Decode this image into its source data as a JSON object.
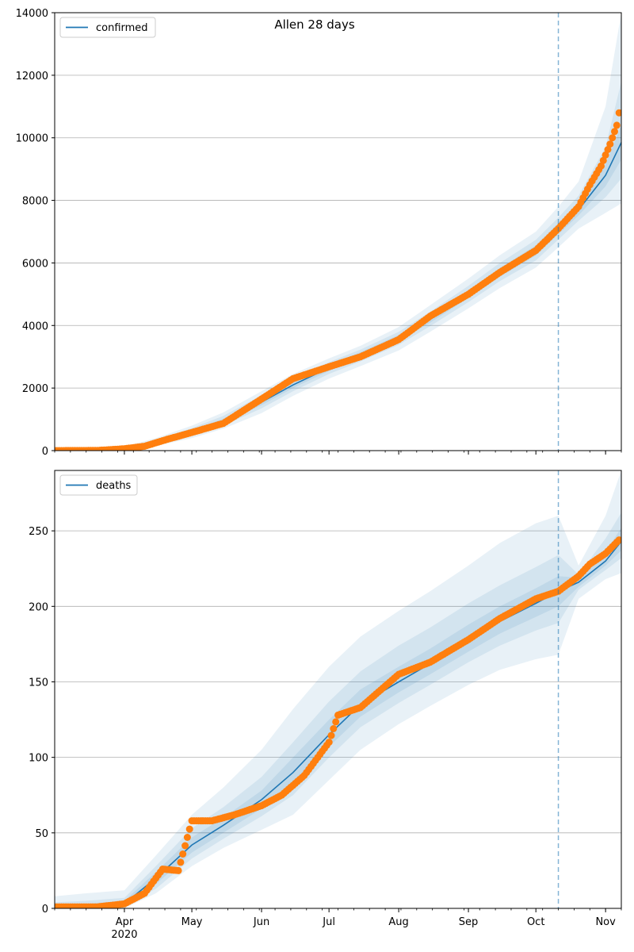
{
  "figure": {
    "title": "Allen 28 days"
  },
  "colors": {
    "model_line": "#1f77b4",
    "observed": "#ff7f0e",
    "band": "#1f77b4",
    "grid": "#b0b0b0",
    "cutoff": "#1f77b4"
  },
  "chart_data": [
    {
      "type": "line",
      "legend": {
        "label": "confirmed",
        "placement": "top-left"
      },
      "x_range": [
        "2020-03-01",
        "2020-11-08"
      ],
      "ylim": [
        0,
        14000
      ],
      "yticks": [
        0,
        2000,
        4000,
        6000,
        8000,
        10000,
        12000,
        14000
      ],
      "ytick_labels": [
        "0",
        "2000",
        "4000",
        "6000",
        "8000",
        "10000",
        "12000",
        "14000"
      ],
      "grid": "y",
      "cutoff_date": "2020-10-11",
      "model": {
        "dates": [
          "2020-03-01",
          "2020-03-15",
          "2020-04-01",
          "2020-04-15",
          "2020-05-01",
          "2020-05-15",
          "2020-06-01",
          "2020-06-15",
          "2020-07-01",
          "2020-07-15",
          "2020-08-01",
          "2020-08-15",
          "2020-09-01",
          "2020-09-15",
          "2020-10-01",
          "2020-10-11",
          "2020-10-20",
          "2020-11-01",
          "2020-11-08"
        ],
        "values": [
          0,
          10,
          60,
          270,
          600,
          950,
          1550,
          2100,
          2650,
          3050,
          3600,
          4200,
          5000,
          5700,
          6400,
          7100,
          7700,
          8800,
          9850
        ]
      },
      "uncertainty_bands": [
        {
          "level": "outer",
          "lower": [
            0,
            0,
            10,
            150,
            400,
            700,
            1200,
            1750,
            2300,
            2700,
            3200,
            3800,
            4550,
            5200,
            5850,
            6500,
            7100,
            7600,
            7900
          ],
          "upper": [
            0,
            30,
            130,
            400,
            800,
            1220,
            1900,
            2450,
            2950,
            3350,
            3950,
            4650,
            5500,
            6250,
            7000,
            7800,
            8600,
            11000,
            14000
          ]
        },
        {
          "level": "middle",
          "lower": [
            0,
            5,
            30,
            200,
            480,
            800,
            1350,
            1900,
            2450,
            2850,
            3380,
            3980,
            4750,
            5420,
            6080,
            6750,
            7350,
            8100,
            8700
          ],
          "upper": [
            0,
            20,
            100,
            340,
            720,
            1110,
            1770,
            2320,
            2830,
            3230,
            3800,
            4440,
            5270,
            6000,
            6740,
            7450,
            8150,
            9700,
            11800
          ]
        },
        {
          "level": "inner",
          "lower": [
            0,
            8,
            45,
            235,
            540,
            880,
            1450,
            2000,
            2550,
            2950,
            3500,
            4090,
            4880,
            5560,
            6240,
            6920,
            7520,
            8450,
            9300
          ],
          "upper": [
            0,
            14,
            75,
            305,
            660,
            1020,
            1650,
            2200,
            2750,
            3150,
            3700,
            4310,
            5120,
            5840,
            6560,
            7280,
            7880,
            9150,
            10400
          ]
        }
      ],
      "observed": {
        "dates": [
          "2020-03-01",
          "2020-03-20",
          "2020-04-01",
          "2020-04-10",
          "2020-04-20",
          "2020-05-01",
          "2020-05-15",
          "2020-06-01",
          "2020-06-15",
          "2020-07-01",
          "2020-07-15",
          "2020-08-01",
          "2020-08-15",
          "2020-09-01",
          "2020-09-15",
          "2020-10-01",
          "2020-10-11",
          "2020-10-20",
          "2020-10-25",
          "2020-10-30",
          "2020-11-03",
          "2020-11-06",
          "2020-11-07"
        ],
        "values": [
          0,
          5,
          60,
          140,
          360,
          580,
          870,
          1650,
          2300,
          2680,
          3000,
          3550,
          4300,
          5000,
          5700,
          6400,
          7100,
          7800,
          8500,
          9100,
          9800,
          10400,
          10800
        ]
      }
    },
    {
      "type": "line",
      "legend": {
        "label": "deaths",
        "placement": "top-left"
      },
      "x_range": [
        "2020-03-01",
        "2020-11-08"
      ],
      "ylim": [
        0,
        290
      ],
      "yticks": [
        0,
        50,
        100,
        150,
        200,
        250
      ],
      "ytick_labels": [
        "0",
        "50",
        "100",
        "150",
        "200",
        "250"
      ],
      "grid": "y",
      "cutoff_date": "2020-10-11",
      "xticks_major": [
        "2020-04-01",
        "2020-05-01",
        "2020-06-01",
        "2020-07-01",
        "2020-08-01",
        "2020-09-01",
        "2020-10-01",
        "2020-11-01"
      ],
      "xtick_labels": [
        "Apr\n2020",
        "May",
        "Jun",
        "Jul",
        "Aug",
        "Sep",
        "Oct",
        "Nov"
      ],
      "model": {
        "dates": [
          "2020-03-01",
          "2020-03-15",
          "2020-04-01",
          "2020-04-15",
          "2020-05-01",
          "2020-05-15",
          "2020-06-01",
          "2020-06-15",
          "2020-07-01",
          "2020-07-15",
          "2020-08-01",
          "2020-08-15",
          "2020-09-01",
          "2020-09-15",
          "2020-10-01",
          "2020-10-11",
          "2020-10-20",
          "2020-11-01",
          "2020-11-08"
        ],
        "values": [
          0,
          1,
          3,
          20,
          42,
          55,
          72,
          90,
          115,
          135,
          150,
          162,
          178,
          190,
          202,
          210,
          216,
          230,
          243
        ]
      },
      "uncertainty_bands": [
        {
          "level": "outer",
          "lower": [
            0,
            0,
            0,
            10,
            28,
            40,
            52,
            62,
            85,
            105,
            122,
            134,
            148,
            158,
            165,
            168,
            205,
            218,
            222
          ],
          "upper": [
            8,
            10,
            12,
            35,
            62,
            80,
            105,
            132,
            160,
            180,
            197,
            210,
            227,
            242,
            255,
            260,
            227,
            260,
            290
          ]
        },
        {
          "level": "middle",
          "lower": [
            0,
            0,
            1,
            13,
            33,
            46,
            61,
            75,
            100,
            120,
            136,
            148,
            163,
            174,
            184,
            189,
            211,
            224,
            232
          ],
          "upper": [
            4,
            5,
            7,
            28,
            53,
            67,
            87,
            110,
            137,
            157,
            174,
            186,
            202,
            214,
            226,
            234,
            221,
            245,
            262
          ]
        },
        {
          "level": "inner",
          "lower": [
            0,
            0,
            2,
            16,
            37,
            50,
            66,
            82,
            107,
            127,
            143,
            155,
            170,
            182,
            193,
            200,
            213,
            227,
            237
          ],
          "upper": [
            2,
            3,
            5,
            24,
            47,
            60,
            78,
            100,
            125,
            145,
            160,
            172,
            188,
            200,
            212,
            220,
            219,
            236,
            252
          ]
        }
      ],
      "observed": {
        "dates": [
          "2020-03-01",
          "2020-03-20",
          "2020-04-01",
          "2020-04-10",
          "2020-04-18",
          "2020-04-25",
          "2020-05-01",
          "2020-05-10",
          "2020-05-20",
          "2020-06-01",
          "2020-06-10",
          "2020-06-20",
          "2020-07-01",
          "2020-07-05",
          "2020-07-15",
          "2020-08-01",
          "2020-08-15",
          "2020-09-01",
          "2020-09-15",
          "2020-10-01",
          "2020-10-11",
          "2020-10-20",
          "2020-10-25",
          "2020-11-01",
          "2020-11-07"
        ],
        "values": [
          1,
          1,
          3,
          10,
          26,
          25,
          58,
          58,
          62,
          68,
          75,
          88,
          110,
          128,
          133,
          155,
          163,
          178,
          192,
          205,
          210,
          220,
          228,
          235,
          244
        ]
      }
    }
  ]
}
